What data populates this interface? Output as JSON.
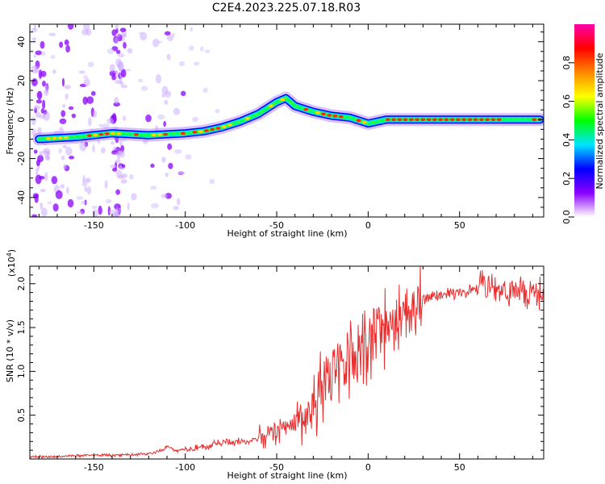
{
  "title": "C2E4.2023.225.07.18.R03",
  "chart_data": [
    {
      "type": "heatmap",
      "xlabel": "Height of straight line (km)",
      "ylabel": "Frequency (Hz)",
      "xlim": [
        -185,
        96
      ],
      "ylim": [
        -50,
        49
      ],
      "xticks": [
        -150,
        -100,
        -50,
        0,
        50
      ],
      "xtick_labels": [
        "-150",
        "-100",
        "-50",
        "0",
        "50"
      ],
      "yticks": [
        -40,
        -20,
        0,
        20,
        40
      ],
      "ytick_labels": [
        "-40",
        "-20",
        "0",
        "20",
        "40"
      ],
      "ridge": {
        "x": [
          -180,
          -160,
          -150,
          -140,
          -120,
          -100,
          -90,
          -80,
          -70,
          -60,
          -50,
          -45,
          -40,
          -30,
          -20,
          -10,
          0,
          10,
          50,
          94
        ],
        "y": [
          -10,
          -9,
          -8,
          -7,
          -8,
          -7,
          -6,
          -4,
          -1,
          3,
          9,
          11,
          7,
          4,
          2,
          1,
          -2,
          0,
          0,
          0
        ]
      },
      "colorbar": {
        "label": "Normalized spectral amplitude",
        "range": [
          0,
          1
        ],
        "ticks": [
          0.0,
          0.2,
          0.4,
          0.6,
          0.8
        ],
        "tick_labels": [
          "0.0",
          "0.2",
          "0.4",
          "0.6",
          "0.8"
        ],
        "colors": [
          "#ffffff",
          "#8a00ff",
          "#0000ff",
          "#00e5ff",
          "#00ff00",
          "#ffff00",
          "#ff8800",
          "#ff0000",
          "#ff00aa"
        ]
      }
    },
    {
      "type": "line",
      "xlabel": "Height of straight line (km)",
      "ylabel": "SNR (10 * v/v)",
      "scale_label": "(x10",
      "scale_exp": "4",
      "scale_close": ")",
      "xlim": [
        -185,
        96
      ],
      "ylim": [
        0,
        2.2
      ],
      "xticks": [
        -150,
        -100,
        -50,
        0,
        50
      ],
      "xtick_labels": [
        "-150",
        "-100",
        "-50",
        "0",
        "50"
      ],
      "yticks": [
        0.5,
        1.0,
        1.5,
        2.0
      ],
      "ytick_labels": [
        "0.5",
        "1.0",
        "1.5",
        "2.0"
      ],
      "series": [
        {
          "name": "SNR",
          "color": "#e83030",
          "x": [
            -185,
            -170,
            -160,
            -150,
            -140,
            -130,
            -120,
            -112,
            -110,
            -105,
            -100,
            -95,
            -90,
            -85,
            -80,
            -75,
            -70,
            -65,
            -60,
            -55,
            -50,
            -45,
            -40,
            -35,
            -30,
            -25,
            -20,
            -15,
            -10,
            -5,
            0,
            5,
            10,
            15,
            20,
            25,
            30,
            40,
            50,
            60,
            70,
            80,
            94
          ],
          "y": [
            0.02,
            0.03,
            0.04,
            0.05,
            0.04,
            0.05,
            0.06,
            0.1,
            0.15,
            0.09,
            0.12,
            0.13,
            0.14,
            0.16,
            0.18,
            0.19,
            0.2,
            0.21,
            0.24,
            0.28,
            0.32,
            0.38,
            0.45,
            0.5,
            0.6,
            0.75,
            0.9,
            1.05,
            1.15,
            1.25,
            1.35,
            1.45,
            1.5,
            1.6,
            1.68,
            1.75,
            1.82,
            1.87,
            1.9,
            1.93,
            1.95,
            1.9,
            1.85
          ]
        }
      ]
    }
  ]
}
